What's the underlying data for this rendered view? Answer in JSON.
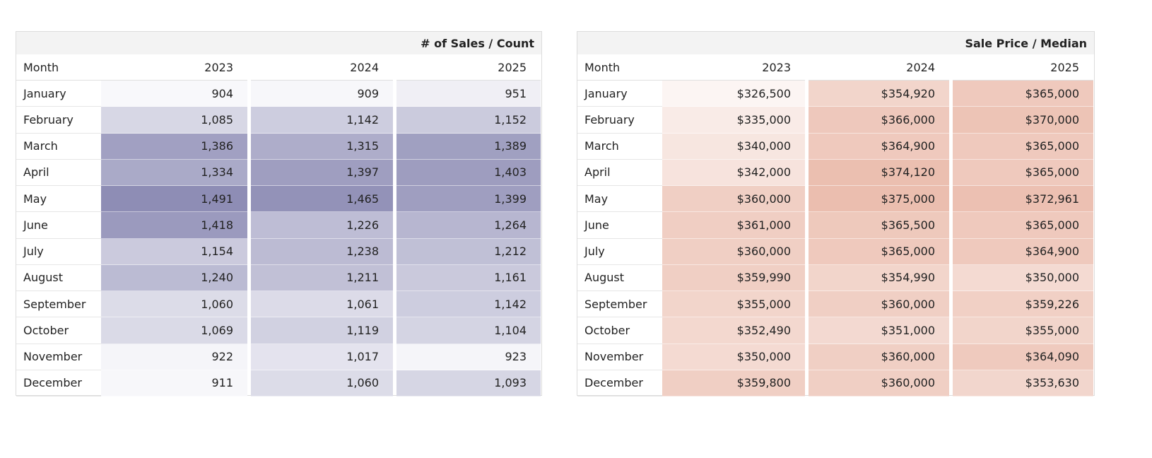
{
  "tables": [
    {
      "title": "# of Sales / Count",
      "columns": [
        "Month",
        "2023",
        "2024",
        "2025"
      ],
      "rows": [
        [
          "January",
          "904",
          "909",
          "951"
        ],
        [
          "February",
          "1,085",
          "1,142",
          "1,152"
        ],
        [
          "March",
          "1,386",
          "1,315",
          "1,389"
        ],
        [
          "April",
          "1,334",
          "1,397",
          "1,403"
        ],
        [
          "May",
          "1,491",
          "1,465",
          "1,399"
        ],
        [
          "June",
          "1,418",
          "1,226",
          "1,264"
        ],
        [
          "July",
          "1,154",
          "1,238",
          "1,212"
        ],
        [
          "August",
          "1,240",
          "1,211",
          "1,161"
        ],
        [
          "September",
          "1,060",
          "1,061",
          "1,142"
        ],
        [
          "October",
          "1,069",
          "1,119",
          "1,104"
        ],
        [
          "November",
          "922",
          "1,017",
          "923"
        ],
        [
          "December",
          "911",
          "1,060",
          "1,093"
        ]
      ]
    },
    {
      "title": "Sale Price / Median",
      "columns": [
        "Month",
        "2023",
        "2024",
        "2025"
      ],
      "rows": [
        [
          "January",
          "$326,500",
          "$354,920",
          "$365,000"
        ],
        [
          "February",
          "$335,000",
          "$366,000",
          "$370,000"
        ],
        [
          "March",
          "$340,000",
          "$364,900",
          "$365,000"
        ],
        [
          "April",
          "$342,000",
          "$374,120",
          "$365,000"
        ],
        [
          "May",
          "$360,000",
          "$375,000",
          "$372,961"
        ],
        [
          "June",
          "$361,000",
          "$365,500",
          "$365,000"
        ],
        [
          "July",
          "$360,000",
          "$365,000",
          "$364,900"
        ],
        [
          "August",
          "$359,990",
          "$354,990",
          "$350,000"
        ],
        [
          "September",
          "$355,000",
          "$360,000",
          "$359,226"
        ],
        [
          "October",
          "$352,490",
          "$351,000",
          "$355,000"
        ],
        [
          "November",
          "$350,000",
          "$360,000",
          "$364,090"
        ],
        [
          "December",
          "$359,800",
          "$360,000",
          "$353,630"
        ]
      ]
    }
  ]
}
